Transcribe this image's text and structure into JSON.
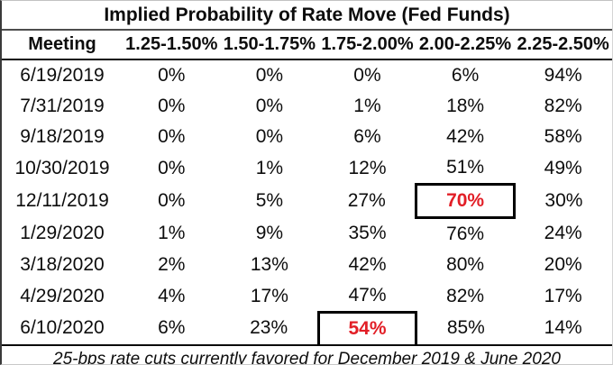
{
  "chart_data": {
    "type": "table",
    "title": "Implied Probability of Rate Move (Fed Funds)",
    "columns": [
      "Meeting",
      "1.25-1.50%",
      "1.50-1.75%",
      "1.75-2.00%",
      "2.00-2.25%",
      "2.25-2.50%"
    ],
    "rows": [
      {
        "meeting": "6/19/2019",
        "values": [
          "0%",
          "0%",
          "0%",
          "6%",
          "94%"
        ],
        "highlight_col": null
      },
      {
        "meeting": "7/31/2019",
        "values": [
          "0%",
          "0%",
          "1%",
          "18%",
          "82%"
        ],
        "highlight_col": null
      },
      {
        "meeting": "9/18/2019",
        "values": [
          "0%",
          "0%",
          "6%",
          "42%",
          "58%"
        ],
        "highlight_col": null
      },
      {
        "meeting": "10/30/2019",
        "values": [
          "0%",
          "1%",
          "12%",
          "51%",
          "49%"
        ],
        "highlight_col": null
      },
      {
        "meeting": "12/11/2019",
        "values": [
          "0%",
          "5%",
          "27%",
          "70%",
          "30%"
        ],
        "highlight_col": 3
      },
      {
        "meeting": "1/29/2020",
        "values": [
          "1%",
          "9%",
          "35%",
          "76%",
          "24%"
        ],
        "highlight_col": null
      },
      {
        "meeting": "3/18/2020",
        "values": [
          "2%",
          "13%",
          "42%",
          "80%",
          "20%"
        ],
        "highlight_col": null
      },
      {
        "meeting": "4/29/2020",
        "values": [
          "4%",
          "17%",
          "47%",
          "82%",
          "17%"
        ],
        "highlight_col": null
      },
      {
        "meeting": "6/10/2020",
        "values": [
          "6%",
          "23%",
          "54%",
          "85%",
          "14%"
        ],
        "highlight_col": 2
      }
    ],
    "highlights": [
      {
        "meeting": "12/11/2019",
        "column": "2.00-2.25%",
        "value": "70%"
      },
      {
        "meeting": "6/10/2020",
        "column": "1.75-2.00%",
        "value": "54%"
      }
    ],
    "footnote": "25-bps rate cuts currently favored for December 2019 & June 2020",
    "layout_hints": {
      "grid": "off",
      "value_alignment": "center"
    }
  },
  "colors": {
    "highlight_text": "#e21e26",
    "highlight_box_border": "#000000",
    "text": "#0d0d0d",
    "title_rule": "#4d4d4d",
    "header_rule": "#0a0a0a"
  }
}
